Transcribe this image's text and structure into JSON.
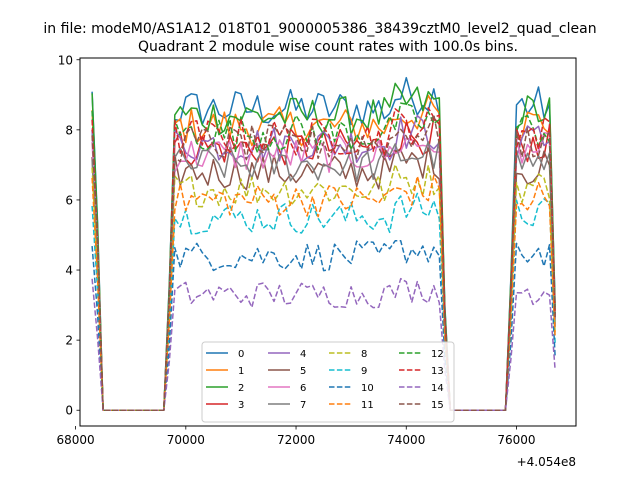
{
  "suptitle": "in file: modeM0/AS1A12_018T01_9000005386_38439cztM0_level2_quad_clean",
  "chart_data": {
    "type": "line",
    "title": "Quadrant 2 module wise count rates with 100.0s bins.",
    "xlabel": "",
    "ylabel": "",
    "offset_label": "+4.054e8",
    "xlim": [
      68080,
      77080
    ],
    "ylim": [
      -0.45,
      10.05
    ],
    "xticks": [
      68000,
      70000,
      72000,
      74000,
      76000
    ],
    "yticks": [
      0,
      2,
      4,
      6,
      8,
      10
    ],
    "x_start": 68300,
    "x_step": 100,
    "num_points": 85,
    "segments": [
      {
        "from": 68300,
        "to": 68400,
        "shape": "ramp_down"
      },
      {
        "from": 68500,
        "to": 69600,
        "shape": "zero"
      },
      {
        "from": 69700,
        "to": 69800,
        "shape": "ramp_up"
      },
      {
        "from": 69900,
        "to": 74600,
        "shape": "plateau"
      },
      {
        "from": 74700,
        "to": 74800,
        "shape": "ramp_down"
      },
      {
        "from": 74800,
        "to": 75800,
        "shape": "zero"
      },
      {
        "from": 75900,
        "to": 76000,
        "shape": "ramp_up"
      },
      {
        "from": 76000,
        "to": 76700,
        "shape": "plateau"
      }
    ],
    "legend": {
      "placement": "lower-center",
      "ncol": 4
    },
    "series": [
      {
        "name": "0",
        "color": "#1f77b4",
        "dash": "solid",
        "level": 8.6
      },
      {
        "name": "1",
        "color": "#ff7f0e",
        "dash": "solid",
        "level": 8.1
      },
      {
        "name": "2",
        "color": "#2ca02c",
        "dash": "solid",
        "level": 8.4
      },
      {
        "name": "3",
        "color": "#d62728",
        "dash": "solid",
        "level": 7.5
      },
      {
        "name": "4",
        "color": "#9467bd",
        "dash": "solid",
        "level": 7.6
      },
      {
        "name": "5",
        "color": "#8c564b",
        "dash": "solid",
        "level": 6.8
      },
      {
        "name": "6",
        "color": "#e377c2",
        "dash": "solid",
        "level": 7.3
      },
      {
        "name": "7",
        "color": "#7f7f7f",
        "dash": "solid",
        "level": 7.0
      },
      {
        "name": "8",
        "color": "#bcbd22",
        "dash": "dashed",
        "level": 6.3
      },
      {
        "name": "9",
        "color": "#17becf",
        "dash": "dashed",
        "level": 5.5
      },
      {
        "name": "10",
        "color": "#1f77b4",
        "dash": "dashed",
        "level": 4.4
      },
      {
        "name": "11",
        "color": "#ff7f0e",
        "dash": "dashed",
        "level": 6.0
      },
      {
        "name": "12",
        "color": "#2ca02c",
        "dash": "dashed",
        "level": 7.9
      },
      {
        "name": "13",
        "color": "#d62728",
        "dash": "dashed",
        "level": 7.8
      },
      {
        "name": "14",
        "color": "#9467bd",
        "dash": "dashed",
        "level": 3.3
      },
      {
        "name": "15",
        "color": "#8c564b",
        "dash": "dashed",
        "level": 7.6
      }
    ]
  }
}
